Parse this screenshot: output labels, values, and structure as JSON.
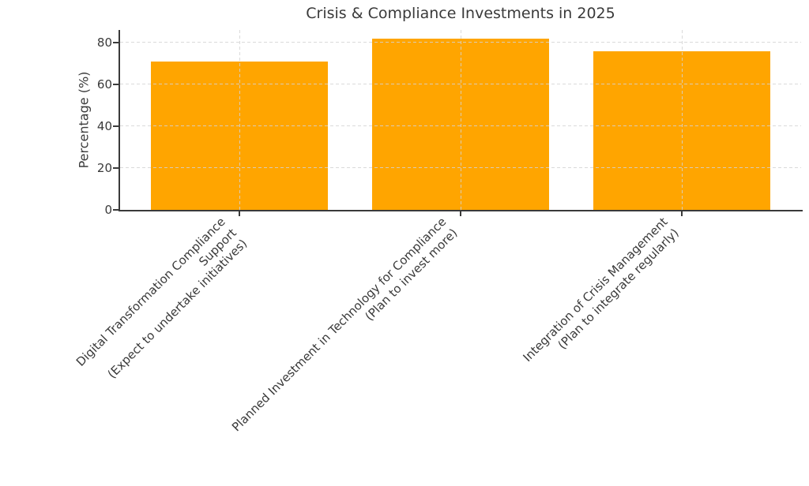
{
  "chart_data": {
    "type": "bar",
    "title": "Crisis & Compliance Investments in 2025",
    "ylabel": "Percentage (%)",
    "xlabel": "",
    "categories": [
      "Digital Transformation Compliance Support\n(Expect to undertake initiatives)",
      "Planned Investment in Technology for Compliance\n(Plan to invest more)",
      "Integration of Crisis Management\n(Plan to integrate regularly)"
    ],
    "values": [
      71,
      82,
      76
    ],
    "yticks": [
      0,
      20,
      40,
      60,
      80
    ],
    "ylim": [
      0,
      86
    ],
    "tick_rotation_deg": 45,
    "grid": true,
    "grid_style": "dashed",
    "legend": "none",
    "colors": {
      "bar": "#FFA500",
      "grid": "#d3d3d3",
      "axis": "#3a3a3a",
      "text": "#3a3a3a",
      "background": "#ffffff"
    }
  }
}
